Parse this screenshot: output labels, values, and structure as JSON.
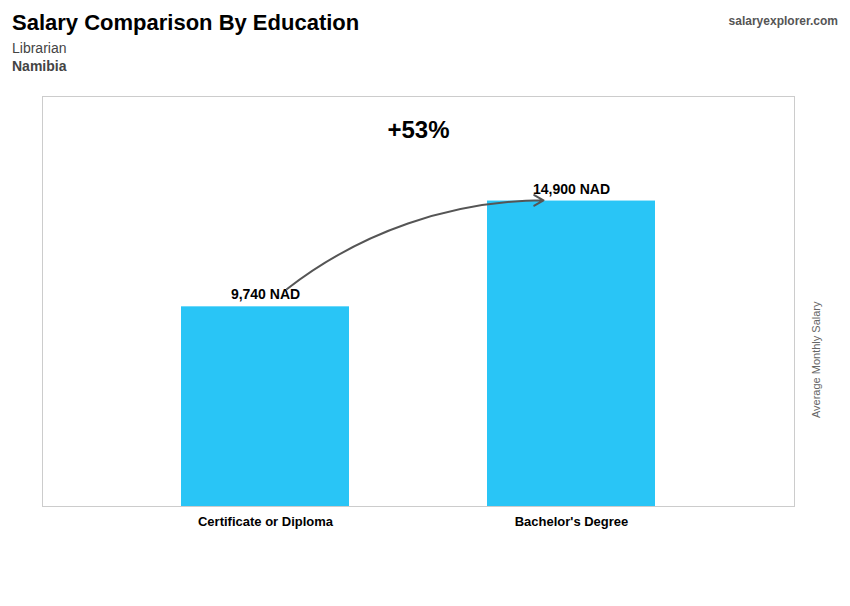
{
  "chart_data": {
    "type": "bar",
    "title": "Salary Comparison By Education",
    "subtitle": [
      "Librarian",
      "Namibia"
    ],
    "categories": [
      "Certificate or Diploma",
      "Bachelor's Degree"
    ],
    "values": [
      9740,
      14900
    ],
    "value_labels": [
      "9,740 NAD",
      "14,900 NAD"
    ],
    "data_labels": true,
    "color": "#29C5F6",
    "ylabel": "Average Monthly Salary",
    "ylim": [
      0,
      20000
    ],
    "tick_labels": "x",
    "grid": false,
    "annotations": [
      "+53%",
      "salaryexplorer.com"
    ]
  }
}
